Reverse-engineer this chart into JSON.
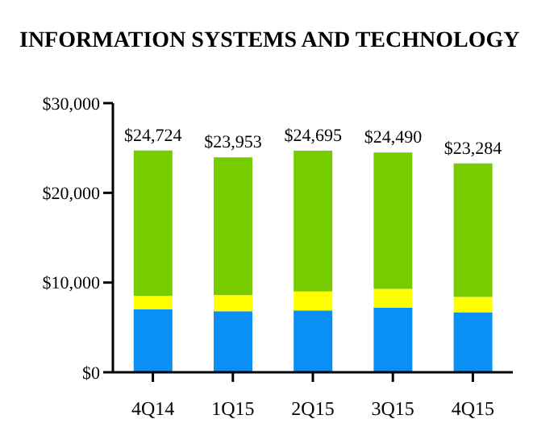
{
  "chart_data": {
    "type": "bar",
    "title": "INFORMATION SYSTEMS AND TECHNOLOGY",
    "categories": [
      "4Q14",
      "1Q15",
      "2Q15",
      "3Q15",
      "4Q15"
    ],
    "stacked": true,
    "series": [
      {
        "color": "#0a8ff5",
        "values": [
          7000,
          6800,
          6900,
          7200,
          6700
        ]
      },
      {
        "color": "#ffff00",
        "values": [
          1500,
          1800,
          2100,
          2100,
          1700
        ]
      },
      {
        "color": "#77cc00",
        "values": [
          16224,
          15353,
          15695,
          15190,
          14884
        ]
      }
    ],
    "totals": [
      "$24,724",
      "$23,953",
      "$24,695",
      "$24,490",
      "$23,284"
    ],
    "ylim": [
      0,
      30000
    ],
    "yticks": [
      {
        "value": 0,
        "label": "$0"
      },
      {
        "value": 10000,
        "label": "$10,000"
      },
      {
        "value": 20000,
        "label": "$20,000"
      },
      {
        "value": 30000,
        "label": "$30,000"
      }
    ],
    "grid": false,
    "legend": false
  }
}
